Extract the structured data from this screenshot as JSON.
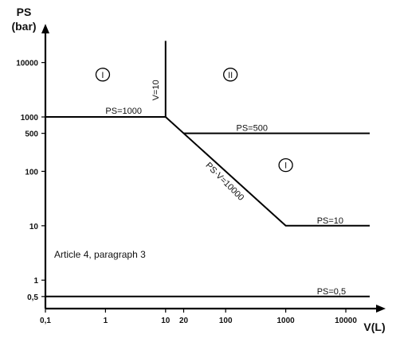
{
  "chart_data": {
    "type": "line",
    "xlabel": "V(L)",
    "ylabel": "PS",
    "ylabel_unit": "(bar)",
    "x_scale": "log",
    "y_scale": "log",
    "xlim": [
      0.1,
      30000
    ],
    "ylim": [
      0.3,
      30000
    ],
    "x_ticks": [
      {
        "value": 0.1,
        "label": "0,1"
      },
      {
        "value": 1,
        "label": "1"
      },
      {
        "value": 10,
        "label": "10"
      },
      {
        "value": 20,
        "label": "20"
      },
      {
        "value": 100,
        "label": "100"
      },
      {
        "value": 1000,
        "label": "1000"
      },
      {
        "value": 10000,
        "label": "10000"
      }
    ],
    "y_ticks": [
      {
        "value": 0.5,
        "label": "0,5"
      },
      {
        "value": 1,
        "label": "1"
      },
      {
        "value": 10,
        "label": "10"
      },
      {
        "value": 100,
        "label": "100"
      },
      {
        "value": 500,
        "label": "500"
      },
      {
        "value": 1000,
        "label": "1000"
      },
      {
        "value": 10000,
        "label": "10000"
      }
    ],
    "series": [
      {
        "points": [
          [
            0.1,
            1000
          ],
          [
            10,
            1000
          ],
          [
            1000,
            10
          ],
          [
            25000,
            10
          ]
        ]
      },
      {
        "points": [
          [
            10,
            1000
          ],
          [
            10,
            25000
          ]
        ]
      },
      {
        "points": [
          [
            20,
            500
          ],
          [
            25000,
            500
          ]
        ]
      },
      {
        "points": [
          [
            0.1,
            0.5
          ],
          [
            25000,
            0.5
          ]
        ]
      }
    ],
    "annotations": [
      {
        "text": "PS=1000",
        "x": 1,
        "y": 1150,
        "rotate": 0
      },
      {
        "text": "V=10",
        "x": 7.6,
        "y": 3100,
        "rotate": -90
      },
      {
        "text": "PS=500",
        "x": 150,
        "y": 560,
        "rotate": 0
      },
      {
        "text": "PS·V=10000",
        "x": 90,
        "y": 60,
        "rotate": 45
      },
      {
        "text": "PS=10",
        "x": 3300,
        "y": 11,
        "rotate": 0
      },
      {
        "text": "PS=0,5",
        "x": 3300,
        "y": 0.55,
        "rotate": 0
      }
    ],
    "regions": [
      {
        "label": "I",
        "x": 0.9,
        "y": 6000
      },
      {
        "label": "II",
        "x": 120,
        "y": 6000
      },
      {
        "label": "I",
        "x": 1000,
        "y": 130
      }
    ],
    "note": "Article 4, paragraph 3",
    "note_position": {
      "x": 0.14,
      "y": 2.6
    },
    "grid": false,
    "legend": "none"
  }
}
